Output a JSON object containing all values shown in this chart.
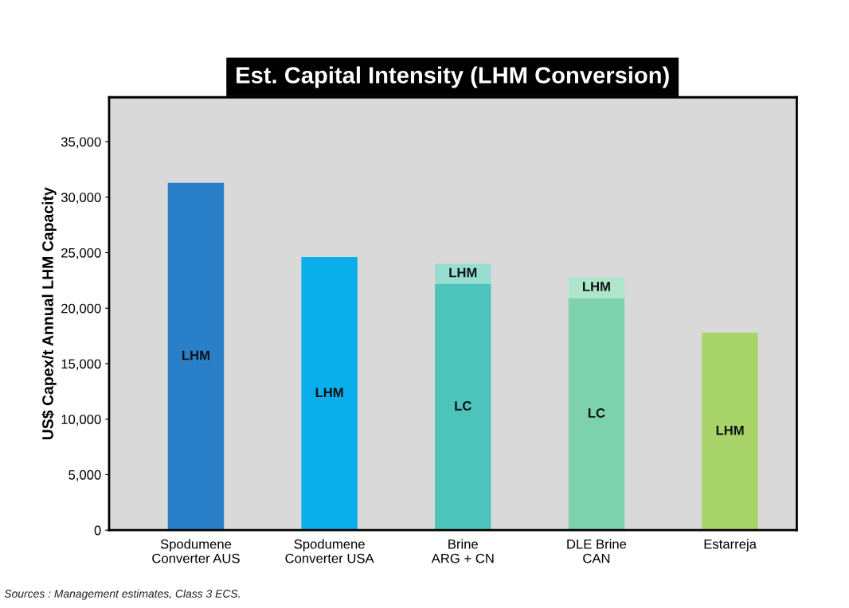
{
  "chart_data": {
    "type": "bar",
    "stacked": true,
    "title": "Est. Capital Intensity (LHM Conversion)",
    "ylabel": "US$ Capex/t Annual LHM Capacity",
    "categories": [
      "Spodumene\nConverter AUS",
      "Spodumene\nConverter USA",
      "Brine\nARG + CN",
      "DLE Brine\nCAN",
      "Estarreja"
    ],
    "series": [
      {
        "name": "LC",
        "colors": [
          "#2a80c8",
          "#0aaeea",
          "#4cc4bc",
          "#7dd1ac",
          "#a8d46a"
        ],
        "values": [
          null,
          null,
          22200,
          20900,
          null
        ]
      },
      {
        "name": "LHM",
        "colors": [
          "#2a80c8",
          "#0aaeea",
          "#98ddd2",
          "#aee5cb",
          "#a8d46a"
        ],
        "values": [
          31300,
          24600,
          1800,
          1900,
          17800
        ]
      }
    ],
    "ylim": [
      0,
      39000
    ],
    "yticks": [
      {
        "value": 0,
        "label": "0"
      },
      {
        "value": 5000,
        "label": "5,000"
      },
      {
        "value": 10000,
        "label": "10,000"
      },
      {
        "value": 15000,
        "label": "15,000"
      },
      {
        "value": 20000,
        "label": "20,000"
      },
      {
        "value": 25000,
        "label": "25,000"
      },
      {
        "value": 30000,
        "label": "30,000"
      },
      {
        "value": 35000,
        "label": "35,000"
      }
    ],
    "grid": false,
    "annotations": [
      "Sources : Management estimates, Class 3 ECS."
    ]
  }
}
